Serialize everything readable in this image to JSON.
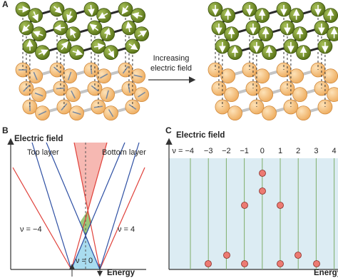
{
  "panel_a": {
    "label": "A",
    "arrow_label": [
      "Increasing",
      "electric field"
    ]
  },
  "panel_b": {
    "label": "B",
    "y_axis": "Electric field",
    "x_axis": "Energy",
    "top_layer": "Top layer",
    "bottom_layer": "Bottom layer",
    "nu_left": "ν = −4",
    "nu_right": "ν = 4",
    "nu_center": "ν = 0"
  },
  "panel_c": {
    "label": "C",
    "y_axis": "Electric field",
    "x_axis": "Energy",
    "nu_labels": [
      "ν = −4",
      "−3",
      "−2",
      "−1",
      "0",
      "1",
      "2",
      "3",
      "4"
    ]
  }
}
